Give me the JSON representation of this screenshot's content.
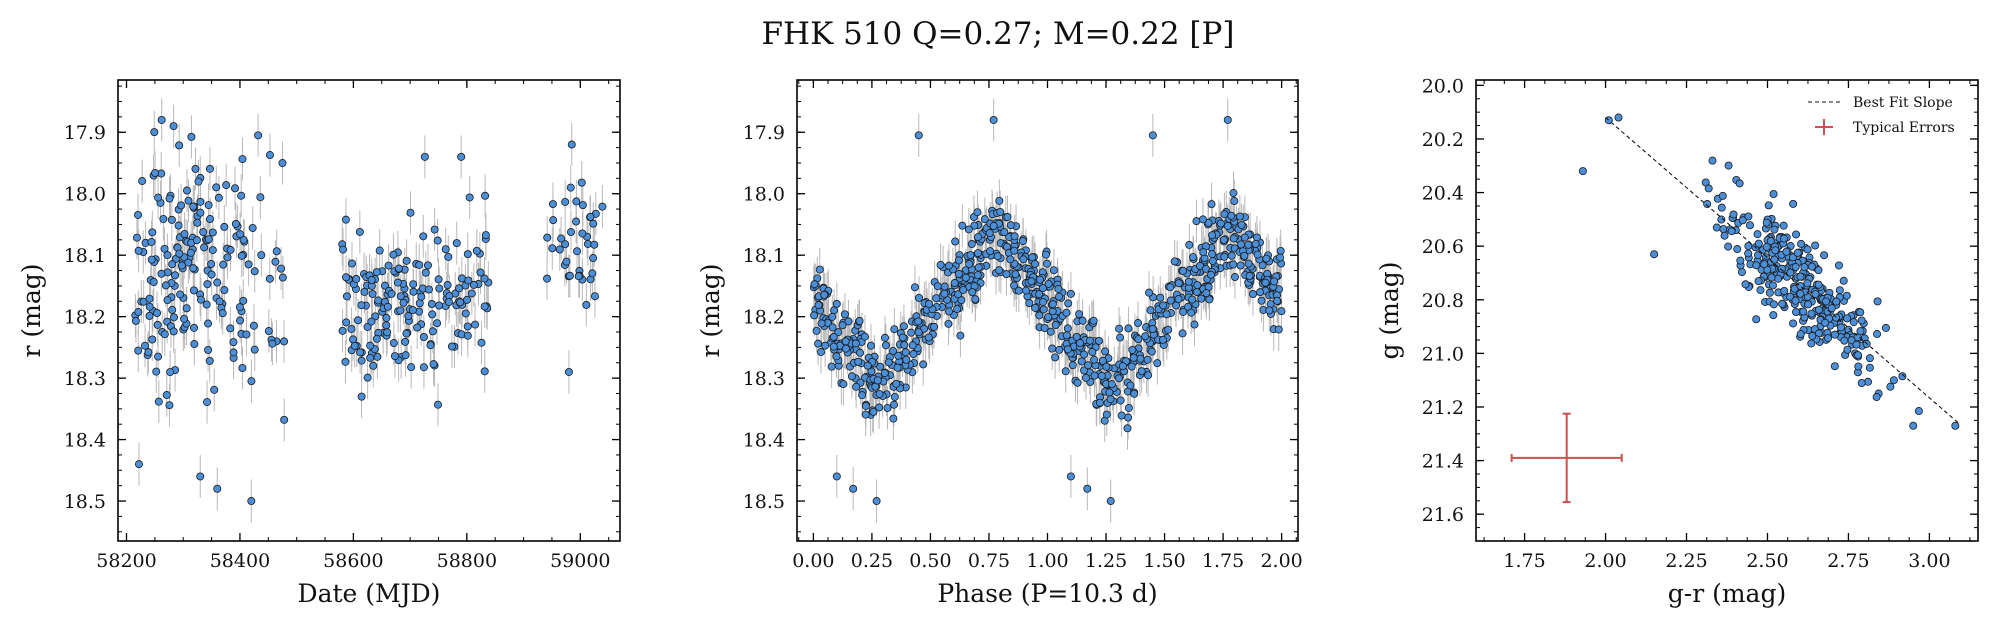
{
  "figure": {
    "title": "FHK 510  Q=0.27; M=0.22 [P]"
  },
  "colors": {
    "point_fill": "#4a8fd8",
    "point_edge": "#1b1b1b",
    "errorbar": "#b8b8b8",
    "typical_error": "#c8504f",
    "fit_line": "#111111"
  },
  "chart_data": [
    {
      "type": "scatter",
      "title": "",
      "xlabel": "Date (MJD)",
      "ylabel": "r (mag)",
      "xlim": [
        58185,
        59070
      ],
      "ylim": [
        18.565,
        17.815
      ],
      "y_inverted": true,
      "xticks": [
        58200,
        58400,
        58600,
        58800,
        59000
      ],
      "yticks": [
        17.9,
        18.0,
        18.1,
        18.2,
        18.3,
        18.4,
        18.5
      ],
      "xtick_labels": [
        "58200",
        "58400",
        "58600",
        "58800",
        "59000"
      ],
      "ytick_labels": [
        "17.9",
        "18.0",
        "18.1",
        "18.2",
        "18.3",
        "18.4",
        "18.5"
      ],
      "yerr": 0.035,
      "groups": [
        {
          "x_range": [
            58215,
            58345
          ],
          "y_center": 18.12,
          "y_spread": 0.19,
          "count": 125
        },
        {
          "x_range": [
            58345,
            58410
          ],
          "y_center": 18.14,
          "y_spread": 0.17,
          "count": 45
        },
        {
          "x_range": [
            58410,
            58480
          ],
          "y_center": 18.16,
          "y_spread": 0.2,
          "count": 22
        },
        {
          "x_range": [
            58580,
            58700
          ],
          "y_center": 18.19,
          "y_spread": 0.13,
          "count": 95
        },
        {
          "x_range": [
            58700,
            58840
          ],
          "y_center": 18.17,
          "y_spread": 0.13,
          "count": 80
        },
        {
          "x_range": [
            58940,
            59040
          ],
          "y_center": 18.09,
          "y_spread": 0.1,
          "count": 38
        }
      ],
      "points_labeled": [
        {
          "x": 58262,
          "y": 17.88
        },
        {
          "x": 58283,
          "y": 17.89
        },
        {
          "x": 58432,
          "y": 17.905
        },
        {
          "x": 58330,
          "y": 18.46
        },
        {
          "x": 58360,
          "y": 18.48
        },
        {
          "x": 58420,
          "y": 18.5
        },
        {
          "x": 58726,
          "y": 17.94
        },
        {
          "x": 58985,
          "y": 17.92
        },
        {
          "x": 58980,
          "y": 18.29
        },
        {
          "x": 58790,
          "y": 17.94
        },
        {
          "x": 58222,
          "y": 18.44
        }
      ]
    },
    {
      "type": "scatter",
      "title": "",
      "xlabel": "Phase (P=10.3 d)",
      "ylabel": "r (mag)",
      "xlim": [
        -0.07,
        2.07
      ],
      "ylim": [
        18.565,
        17.815
      ],
      "y_inverted": true,
      "xticks": [
        0.0,
        0.25,
        0.5,
        0.75,
        1.0,
        1.25,
        1.5,
        1.75,
        2.0
      ],
      "yticks": [
        17.9,
        18.0,
        18.1,
        18.2,
        18.3,
        18.4,
        18.5
      ],
      "xtick_labels": [
        "0.00",
        "0.25",
        "0.50",
        "0.75",
        "1.00",
        "1.25",
        "1.50",
        "1.75",
        "2.00"
      ],
      "ytick_labels": [
        "17.9",
        "18.0",
        "18.1",
        "18.2",
        "18.3",
        "18.4",
        "18.5"
      ],
      "yerr": 0.035,
      "model": {
        "mean": 18.19,
        "amplitude": 0.125,
        "max_light_phase": 0.78,
        "scatter": 0.055,
        "points_per_cycle": 410
      },
      "points_labeled": [
        {
          "x": 0.1,
          "y": 18.46
        },
        {
          "x": 0.17,
          "y": 18.48
        },
        {
          "x": 0.27,
          "y": 18.5
        },
        {
          "x": 1.1,
          "y": 18.46
        },
        {
          "x": 1.17,
          "y": 18.48
        },
        {
          "x": 1.27,
          "y": 18.5
        },
        {
          "x": 0.77,
          "y": 17.88
        },
        {
          "x": 1.77,
          "y": 17.88
        },
        {
          "x": 0.45,
          "y": 17.905
        },
        {
          "x": 1.45,
          "y": 17.905
        }
      ]
    },
    {
      "type": "scatter",
      "title": "",
      "xlabel": "g-r (mag)",
      "ylabel": "g (mag)",
      "xlim": [
        1.6,
        3.15
      ],
      "ylim": [
        21.7,
        19.98
      ],
      "y_inverted": true,
      "xticks": [
        1.75,
        2.0,
        2.25,
        2.5,
        2.75,
        3.0
      ],
      "yticks": [
        20.0,
        20.2,
        20.4,
        20.6,
        20.8,
        21.0,
        21.2,
        21.4,
        21.6
      ],
      "xtick_labels": [
        "1.75",
        "2.00",
        "2.25",
        "2.50",
        "2.75",
        "3.00"
      ],
      "ytick_labels": [
        "20.0",
        "20.2",
        "20.4",
        "20.6",
        "20.8",
        "21.0",
        "21.2",
        "21.4",
        "21.6"
      ],
      "cloud": {
        "x_center": 2.6,
        "x_spread": 0.2,
        "slope": 1.05,
        "y_center": 20.75,
        "y_scatter": 0.09,
        "count": 330
      },
      "fit_line": {
        "x0": 2.0,
        "y0": 20.12,
        "x1": 3.09,
        "y1": 21.26
      },
      "points_labeled": [
        {
          "x": 1.93,
          "y": 20.32
        },
        {
          "x": 2.01,
          "y": 20.13
        },
        {
          "x": 2.04,
          "y": 20.12
        },
        {
          "x": 3.08,
          "y": 21.27
        },
        {
          "x": 2.95,
          "y": 21.27
        },
        {
          "x": 2.15,
          "y": 20.63
        }
      ],
      "typical_errors": {
        "x": 1.88,
        "y": 21.39,
        "xerr": 0.17,
        "yerr": 0.165
      },
      "legend": {
        "position": "top-right",
        "entries": [
          "Best Fit Slope",
          "Typical Errors"
        ]
      }
    }
  ]
}
